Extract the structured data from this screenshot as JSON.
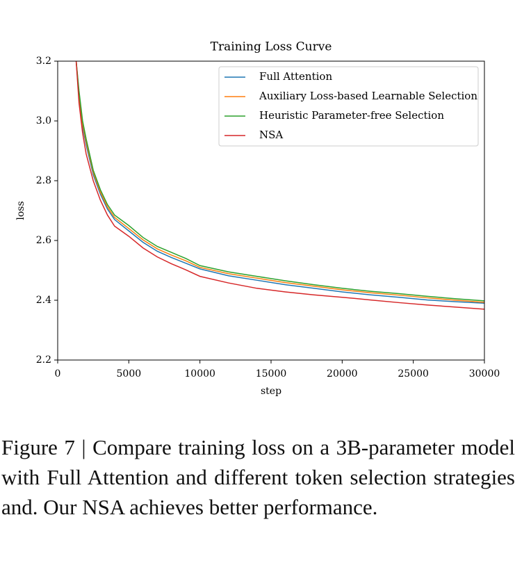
{
  "chart_data": {
    "type": "line",
    "title": "Training Loss Curve",
    "xlabel": "step",
    "ylabel": "loss",
    "x": [
      1300,
      1500,
      1750,
      2000,
      2500,
      3000,
      3500,
      4000,
      5000,
      6000,
      7000,
      8000,
      9000,
      10000,
      12000,
      14000,
      16000,
      18000,
      20000,
      22000,
      24000,
      26000,
      28000,
      30000
    ],
    "series": [
      {
        "name": "Full Attention",
        "color": "#1f77b4",
        "values": [
          3.2,
          3.08,
          2.98,
          2.92,
          2.82,
          2.755,
          2.705,
          2.67,
          2.632,
          2.594,
          2.564,
          2.543,
          2.524,
          2.505,
          2.482,
          2.467,
          2.452,
          2.44,
          2.428,
          2.418,
          2.41,
          2.401,
          2.395,
          2.39
        ]
      },
      {
        "name": "Auxiliary Loss-based Learnable Selection",
        "color": "#ff7f0e",
        "values": [
          3.2,
          3.09,
          2.99,
          2.93,
          2.828,
          2.762,
          2.712,
          2.677,
          2.64,
          2.602,
          2.572,
          2.551,
          2.532,
          2.51,
          2.489,
          2.474,
          2.459,
          2.447,
          2.435,
          2.425,
          2.417,
          2.408,
          2.4,
          2.393
        ]
      },
      {
        "name": "Heuristic Parameter-free Selection",
        "color": "#2ca02c",
        "values": [
          3.2,
          3.1,
          3.0,
          2.94,
          2.835,
          2.77,
          2.72,
          2.685,
          2.65,
          2.61,
          2.58,
          2.56,
          2.54,
          2.516,
          2.495,
          2.48,
          2.465,
          2.452,
          2.44,
          2.43,
          2.422,
          2.413,
          2.405,
          2.398
        ]
      },
      {
        "name": "NSA",
        "color": "#d62728",
        "values": [
          3.2,
          3.06,
          2.96,
          2.89,
          2.8,
          2.735,
          2.685,
          2.648,
          2.614,
          2.575,
          2.545,
          2.522,
          2.502,
          2.48,
          2.458,
          2.44,
          2.428,
          2.418,
          2.41,
          2.401,
          2.392,
          2.384,
          2.377,
          2.37
        ]
      }
    ],
    "xlim": [
      0,
      30000
    ],
    "xticks": [
      0,
      5000,
      10000,
      15000,
      20000,
      25000,
      30000
    ],
    "ylim": [
      2.2,
      3.2
    ],
    "yticks": [
      2.2,
      2.4,
      2.6,
      2.8,
      {
        "value": 3,
        "label": "3.0"
      },
      3.2
    ],
    "legend": "upper right"
  },
  "caption": "Figure 7 | Compare training loss on a 3B-parameter model with Full Attention and different token selection strategies and. Our NSA achieves better performance."
}
